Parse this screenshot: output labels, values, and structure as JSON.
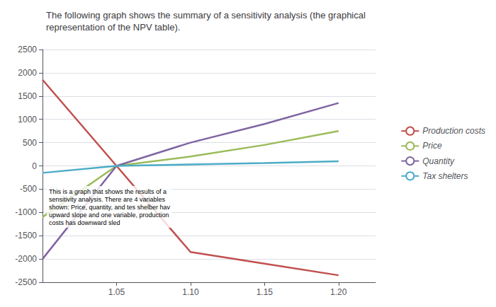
{
  "chart_data": {
    "type": "line",
    "title": "The following graph shows the summary of a sensitivity analysis (the graphical\nrepresentation of the NPV table).",
    "x": [
      1.0,
      1.05,
      1.1,
      1.15,
      1.2
    ],
    "series": [
      {
        "name": "Production costs",
        "color": "#c0504d",
        "values": [
          1850,
          0,
          -1850,
          -2100,
          -2350
        ]
      },
      {
        "name": "Price",
        "color": "#9bbb59",
        "values": [
          -1100,
          0,
          200,
          450,
          750
        ]
      },
      {
        "name": "Quantity",
        "color": "#8064a2",
        "values": [
          -2000,
          0,
          500,
          900,
          1350
        ]
      },
      {
        "name": "Tax shelters",
        "color": "#4bacc6",
        "values": [
          -150,
          0,
          30,
          60,
          100
        ]
      }
    ],
    "xlim": [
      1.0,
      1.225
    ],
    "xticks": [
      1.05,
      {
        "value": 1.1,
        "label": "1.10"
      },
      1.15,
      {
        "value": 1.2,
        "label": "1.20"
      }
    ],
    "ylim": [
      -2500,
      2500
    ],
    "yticks": [
      -2500,
      -2000,
      -1500,
      -1000,
      -500,
      0,
      500,
      1000,
      1500,
      2000,
      2500
    ],
    "grid": true,
    "legend": "right",
    "annotation": "This is a graph that shows the results of a\nsensitivity analysis. There are 4 variables\nshown: Price, quantity, and tes shelber hav\nupward slope and one variable, production\ncosts has downward sled"
  }
}
